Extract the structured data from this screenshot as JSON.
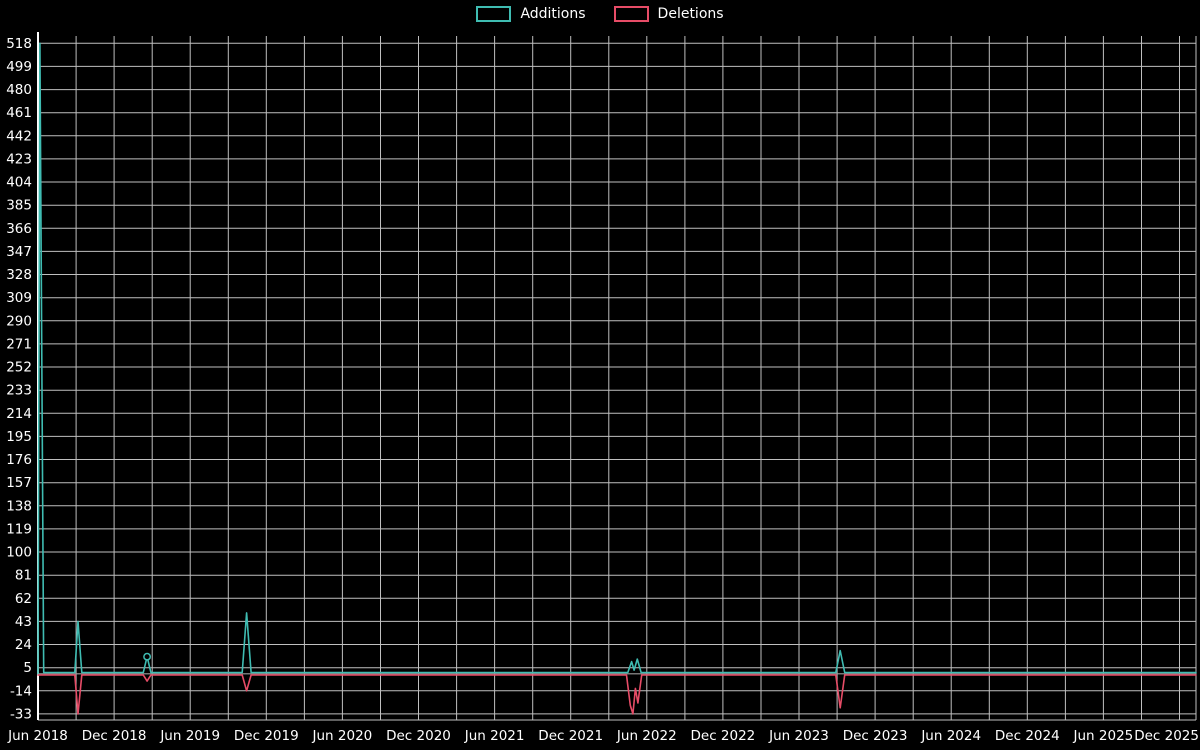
{
  "chart_data": {
    "type": "line",
    "title": "",
    "legend_position": "top",
    "background": "#000000",
    "grid_color": "#bfbfbf",
    "axis_color": "#ffffff",
    "zero_line_color": "#9e9e9e",
    "text_color": "#ffffff",
    "xlabel": "",
    "ylabel": "",
    "xlim": [
      0,
      91.3
    ],
    "ylim": [
      -38,
      524
    ],
    "x_grid_step_months": 3,
    "x_ticks": [
      {
        "m": 0,
        "label": "Jun 2018"
      },
      {
        "m": 6,
        "label": "Dec 2018"
      },
      {
        "m": 12,
        "label": "Jun 2019"
      },
      {
        "m": 18,
        "label": "Dec 2019"
      },
      {
        "m": 24,
        "label": "Jun 2020"
      },
      {
        "m": 30,
        "label": "Dec 2020"
      },
      {
        "m": 36,
        "label": "Jun 2021"
      },
      {
        "m": 42,
        "label": "Dec 2021"
      },
      {
        "m": 48,
        "label": "Jun 2022"
      },
      {
        "m": 54,
        "label": "Dec 2022"
      },
      {
        "m": 60,
        "label": "Jun 2023"
      },
      {
        "m": 66,
        "label": "Dec 2023"
      },
      {
        "m": 72,
        "label": "Jun 2024"
      },
      {
        "m": 78,
        "label": "Dec 2024"
      },
      {
        "m": 84,
        "label": "Jun 2025"
      },
      {
        "m": 90,
        "label": "Dec 2025"
      }
    ],
    "y_ticks": [
      518,
      499,
      480,
      461,
      442,
      423,
      404,
      385,
      366,
      347,
      328,
      309,
      290,
      271,
      252,
      233,
      214,
      195,
      176,
      157,
      138,
      119,
      100,
      81,
      62,
      43,
      24,
      5,
      -14,
      -33
    ],
    "series": [
      {
        "name": "Additions",
        "color": "#3fbcb2",
        "baseline": 1,
        "points": [
          [
            0,
            0
          ],
          [
            0.15,
            518
          ],
          [
            0.45,
            1
          ],
          [
            2.9,
            1
          ],
          [
            3.15,
            43
          ],
          [
            3.45,
            1
          ],
          [
            8.3,
            1
          ],
          [
            8.6,
            14
          ],
          [
            8.9,
            1
          ],
          [
            16.1,
            1
          ],
          [
            16.45,
            50
          ],
          [
            16.8,
            1
          ],
          [
            46.5,
            1
          ],
          [
            46.8,
            10
          ],
          [
            47.0,
            3
          ],
          [
            47.25,
            12
          ],
          [
            47.55,
            1
          ],
          [
            62.9,
            1
          ],
          [
            63.25,
            19
          ],
          [
            63.6,
            1
          ],
          [
            91.3,
            1
          ]
        ]
      },
      {
        "name": "Deletions",
        "color": "#e74c67",
        "baseline": -1,
        "points": [
          [
            0,
            -1
          ],
          [
            2.9,
            -1
          ],
          [
            3.15,
            -33
          ],
          [
            3.45,
            -1
          ],
          [
            8.3,
            -1
          ],
          [
            8.6,
            -6
          ],
          [
            8.9,
            -1
          ],
          [
            16.1,
            -1
          ],
          [
            16.45,
            -14
          ],
          [
            16.8,
            -1
          ],
          [
            46.4,
            -1
          ],
          [
            46.7,
            -26
          ],
          [
            46.9,
            -33
          ],
          [
            47.1,
            -12
          ],
          [
            47.3,
            -24
          ],
          [
            47.6,
            -1
          ],
          [
            62.9,
            -1
          ],
          [
            63.25,
            -28
          ],
          [
            63.6,
            -1
          ],
          [
            91.3,
            -1
          ]
        ]
      }
    ],
    "markers": [
      {
        "series": 0,
        "m": 8.6,
        "v": 14
      }
    ]
  }
}
